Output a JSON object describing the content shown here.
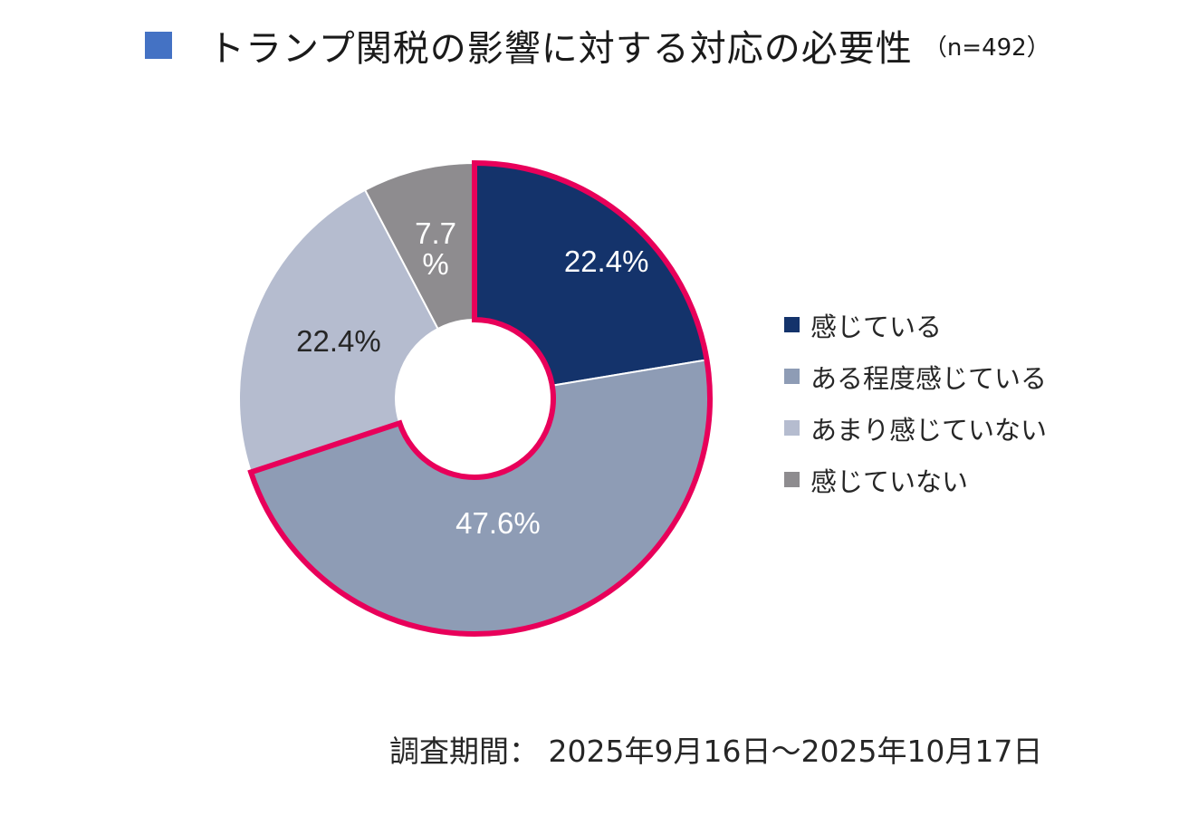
{
  "chart_data": {
    "type": "pie",
    "title": "トランプ関税の影響に対する対応の必要性",
    "subtitle": "（n=492）",
    "categories": [
      "感じている",
      "ある程度感じている",
      "あまり感じていない",
      "感じていない"
    ],
    "values": [
      22.4,
      47.6,
      22.4,
      7.7
    ],
    "data_labels": [
      "22.4%",
      "47.6%",
      "22.4%",
      "7.7\n%"
    ],
    "colors": [
      "#14336b",
      "#8e9cb5",
      "#b5bccf",
      "#8e8c8f"
    ],
    "label_colors": [
      "#ffffff",
      "#ffffff",
      "#262626",
      "#ffffff"
    ],
    "highlighted_categories": [
      "感じている",
      "ある程度感じている"
    ],
    "highlight_color": "#e8005a",
    "donut": true,
    "legend_position": "right"
  },
  "title_marker_color": "#4472c4",
  "survey_period": "調査期間：  2025年9月16日～2025年10月17日"
}
